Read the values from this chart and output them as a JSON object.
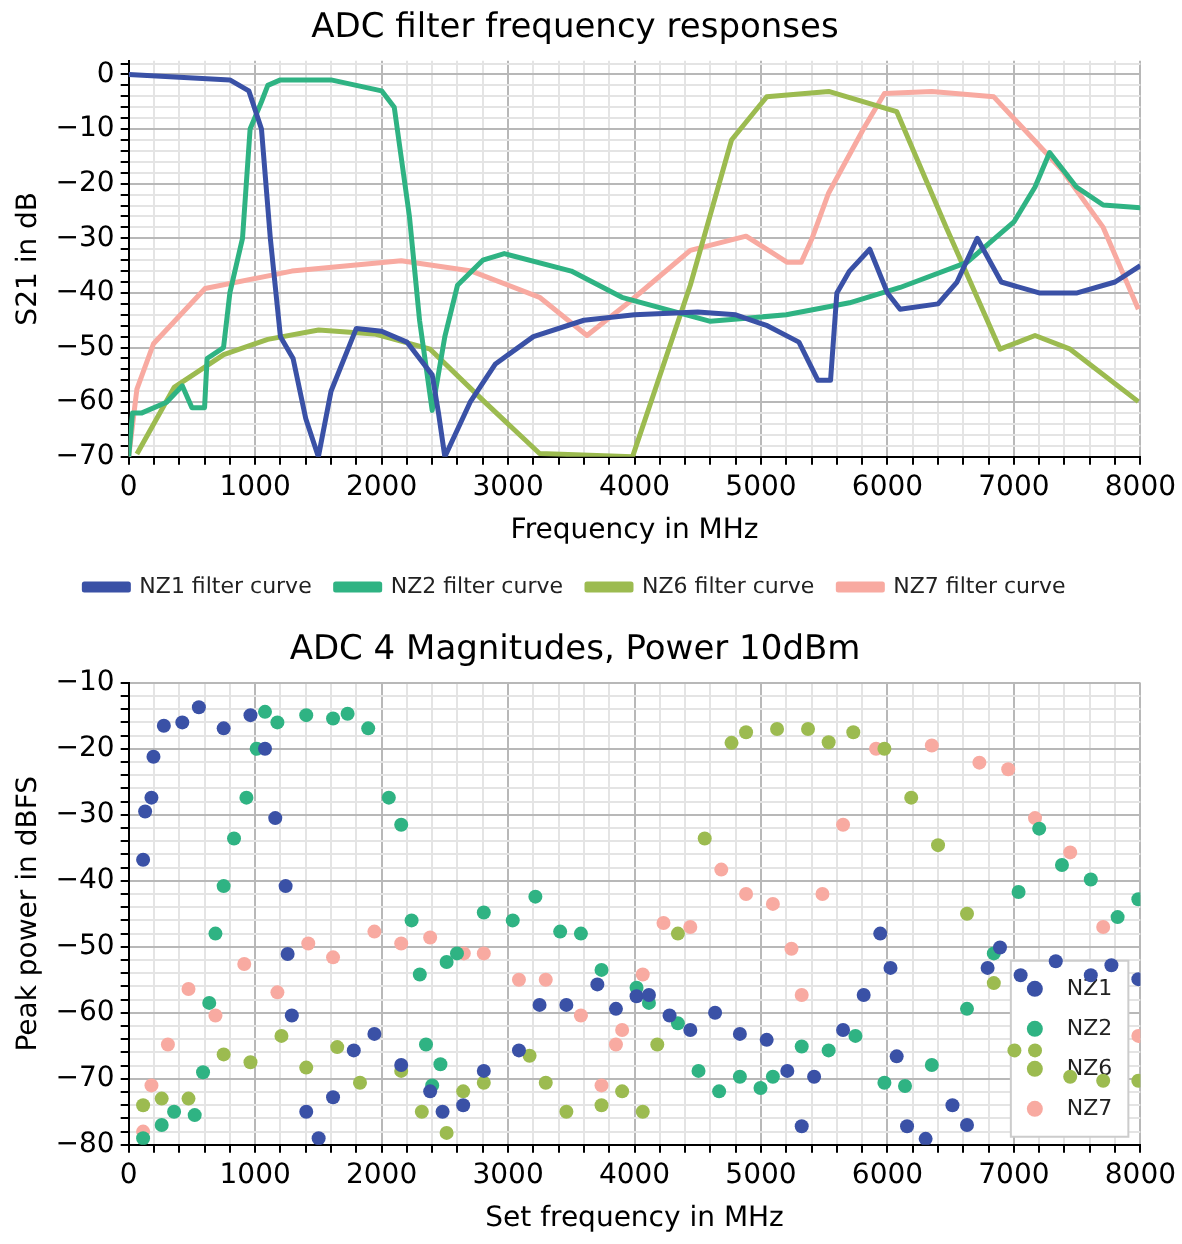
{
  "chart_data": [
    {
      "type": "line",
      "title": "ADC filter frequency responses",
      "xlabel": "Frequency in MHz",
      "ylabel": "S21 in dB",
      "legend": "bottom",
      "grid": true,
      "marker": "none",
      "line_style": "solid",
      "xlim": [
        0,
        8000
      ],
      "ylim": [
        -70,
        2.5
      ],
      "xticks": [
        0,
        {
          "value": 200,
          "label": null
        },
        {
          "value": 400,
          "label": null
        },
        {
          "value": 600,
          "label": null
        },
        {
          "value": 800,
          "label": null
        },
        1000,
        {
          "value": 1200,
          "label": null
        },
        {
          "value": 1400,
          "label": null
        },
        {
          "value": 1600,
          "label": null
        },
        {
          "value": 1800,
          "label": null
        },
        2000,
        {
          "value": 2200,
          "label": null
        },
        {
          "value": 2400,
          "label": null
        },
        {
          "value": 2600,
          "label": null
        },
        {
          "value": 2800,
          "label": null
        },
        3000,
        {
          "value": 3200,
          "label": null
        },
        {
          "value": 3400,
          "label": null
        },
        {
          "value": 3600,
          "label": null
        },
        {
          "value": 3800,
          "label": null
        },
        4000,
        {
          "value": 4200,
          "label": null
        },
        {
          "value": 4400,
          "label": null
        },
        {
          "value": 4600,
          "label": null
        },
        {
          "value": 4800,
          "label": null
        },
        5000,
        {
          "value": 5200,
          "label": null
        },
        {
          "value": 5400,
          "label": null
        },
        {
          "value": 5600,
          "label": null
        },
        {
          "value": 5800,
          "label": null
        },
        6000,
        {
          "value": 6200,
          "label": null
        },
        {
          "value": 6400,
          "label": null
        },
        {
          "value": 6600,
          "label": null
        },
        {
          "value": 6800,
          "label": null
        },
        7000,
        {
          "value": 7200,
          "label": null
        },
        {
          "value": 7400,
          "label": null
        },
        {
          "value": 7600,
          "label": null
        },
        {
          "value": 7800,
          "label": null
        },
        8000
      ],
      "yticks": [
        {
          "value": 2,
          "label": null
        },
        0,
        {
          "value": -2,
          "label": null
        },
        {
          "value": -4,
          "label": null
        },
        {
          "value": -6,
          "label": null
        },
        {
          "value": -8,
          "label": null
        },
        {
          "value": -10,
          "label": "−10"
        },
        {
          "value": -12,
          "label": null
        },
        {
          "value": -14,
          "label": null
        },
        {
          "value": -16,
          "label": null
        },
        {
          "value": -18,
          "label": null
        },
        {
          "value": -20,
          "label": "−20"
        },
        {
          "value": -22,
          "label": null
        },
        {
          "value": -24,
          "label": null
        },
        {
          "value": -26,
          "label": null
        },
        {
          "value": -28,
          "label": null
        },
        {
          "value": -30,
          "label": "−30"
        },
        {
          "value": -32,
          "label": null
        },
        {
          "value": -34,
          "label": null
        },
        {
          "value": -36,
          "label": null
        },
        {
          "value": -38,
          "label": null
        },
        {
          "value": -40,
          "label": "−40"
        },
        {
          "value": -42,
          "label": null
        },
        {
          "value": -44,
          "label": null
        },
        {
          "value": -46,
          "label": null
        },
        {
          "value": -48,
          "label": null
        },
        {
          "value": -50,
          "label": "−50"
        },
        {
          "value": -52,
          "label": null
        },
        {
          "value": -54,
          "label": null
        },
        {
          "value": -56,
          "label": null
        },
        {
          "value": -58,
          "label": null
        },
        {
          "value": -60,
          "label": "−60"
        },
        {
          "value": -62,
          "label": null
        },
        {
          "value": -64,
          "label": null
        },
        {
          "value": -66,
          "label": null
        },
        {
          "value": -68,
          "label": null
        },
        {
          "value": -70,
          "label": "−70"
        }
      ],
      "series": [
        {
          "name": "NZ1 filter curve",
          "color": "#3a51a6",
          "x": [
            0,
            400,
            800,
            950,
            1050,
            1120,
            1200,
            1300,
            1400,
            1500,
            1600,
            1800,
            2000,
            2200,
            2300,
            2400,
            2450,
            2500,
            2700,
            2900,
            3200,
            3600,
            4000,
            4500,
            4800,
            5050,
            5300,
            5450,
            5550,
            5600,
            5700,
            5860,
            6000,
            6100,
            6400,
            6550,
            6710,
            6900,
            7200,
            7500,
            7800,
            8000
          ],
          "values": [
            0,
            -0.5,
            -1,
            -3,
            -10,
            -30,
            -48,
            -52,
            -63,
            -70,
            -58,
            -46.5,
            -47,
            -49,
            -52,
            -55,
            -62,
            -70,
            -60,
            -53,
            -48,
            -45,
            -44,
            -43.5,
            -44,
            -46,
            -49,
            -56,
            -56,
            -40,
            -36,
            -32,
            -40,
            -43,
            -42,
            -38,
            -30,
            -38,
            -40,
            -40,
            -38,
            -35
          ]
        },
        {
          "name": "NZ2 filter curve",
          "color": "#2fb383",
          "x": [
            0,
            30,
            100,
            300,
            424,
            500,
            600,
            620,
            750,
            800,
            900,
            960,
            1050,
            1100,
            1200,
            1600,
            2000,
            2100,
            2220,
            2300,
            2400,
            2500,
            2600,
            2800,
            2970,
            3500,
            3900,
            4600,
            5200,
            5700,
            6100,
            6629,
            7000,
            7167,
            7282,
            7494,
            7706,
            8000
          ],
          "values": [
            -70,
            -62,
            -62,
            -60,
            -57,
            -61,
            -61,
            -52,
            -50,
            -40,
            -30,
            -10,
            -5,
            -2,
            -1,
            -1,
            -3,
            -6,
            -26,
            -45,
            -61.5,
            -48,
            -38.6,
            -34,
            -32.8,
            -36,
            -40.8,
            -45.2,
            -44,
            -41.8,
            -39,
            -34.4,
            -27,
            -20.6,
            -14.3,
            -20.6,
            -23.9,
            -24.4
          ]
        },
        {
          "name": "NZ6 filter curve",
          "color": "#9cbb50",
          "x": [
            65,
            359,
            751,
            1100,
            1502,
            1943,
            2384,
            2812,
            3249,
            3984,
            4441,
            4767,
            5045,
            5535,
            6073,
            6465,
            6890,
            7167,
            7445,
            7984
          ],
          "values": [
            -69.5,
            -57.3,
            -51.3,
            -48.5,
            -46.8,
            -47.5,
            -50.3,
            -59.9,
            -69.4,
            -70,
            -38.6,
            -12,
            -4.1,
            -3.1,
            -6.8,
            -28,
            -50.3,
            -47.8,
            -50.3,
            -59.9
          ]
        },
        {
          "name": "NZ7 filter curve",
          "color": "#f8aaa1",
          "x": [
            0,
            65,
            196,
            604,
            1290,
            2155,
            2710,
            3249,
            3624,
            3951,
            4441,
            4882,
            5208,
            5318,
            5404,
            5535,
            5812,
            5976,
            6351,
            6841,
            7380,
            7706,
            7984
          ],
          "values": [
            -70,
            -57.6,
            -49.3,
            -39.2,
            -36,
            -34.1,
            -36,
            -40.8,
            -47.8,
            -41.8,
            -32.2,
            -29.6,
            -34.4,
            -34.4,
            -30,
            -21.7,
            -9.9,
            -3.5,
            -3.1,
            -4.1,
            -17.5,
            -28,
            -43
          ]
        }
      ]
    },
    {
      "type": "scatter",
      "title": "ADC 4 Magnitudes, Power 10dBm",
      "xlabel": "Set frequency in MHz",
      "ylabel": "Peak power in dBFS",
      "legend": "bottom right",
      "grid": true,
      "marker": "circle",
      "xlim": [
        0,
        8000
      ],
      "ylim": [
        -80,
        -10
      ],
      "xticks": [
        0,
        {
          "value": 200,
          "label": null
        },
        {
          "value": 400,
          "label": null
        },
        {
          "value": 600,
          "label": null
        },
        {
          "value": 800,
          "label": null
        },
        1000,
        {
          "value": 1200,
          "label": null
        },
        {
          "value": 1400,
          "label": null
        },
        {
          "value": 1600,
          "label": null
        },
        {
          "value": 1800,
          "label": null
        },
        2000,
        {
          "value": 2200,
          "label": null
        },
        {
          "value": 2400,
          "label": null
        },
        {
          "value": 2600,
          "label": null
        },
        {
          "value": 2800,
          "label": null
        },
        3000,
        {
          "value": 3200,
          "label": null
        },
        {
          "value": 3400,
          "label": null
        },
        {
          "value": 3600,
          "label": null
        },
        {
          "value": 3800,
          "label": null
        },
        4000,
        {
          "value": 4200,
          "label": null
        },
        {
          "value": 4400,
          "label": null
        },
        {
          "value": 4600,
          "label": null
        },
        {
          "value": 4800,
          "label": null
        },
        5000,
        {
          "value": 5200,
          "label": null
        },
        {
          "value": 5400,
          "label": null
        },
        {
          "value": 5600,
          "label": null
        },
        {
          "value": 5800,
          "label": null
        },
        6000,
        {
          "value": 6200,
          "label": null
        },
        {
          "value": 6400,
          "label": null
        },
        {
          "value": 6600,
          "label": null
        },
        {
          "value": 6800,
          "label": null
        },
        7000,
        {
          "value": 7200,
          "label": null
        },
        {
          "value": 7400,
          "label": null
        },
        {
          "value": 7600,
          "label": null
        },
        {
          "value": 7800,
          "label": null
        },
        8000
      ],
      "yticks": [
        {
          "value": -10,
          "label": "−10"
        },
        {
          "value": -12,
          "label": null
        },
        {
          "value": -14,
          "label": null
        },
        {
          "value": -16,
          "label": null
        },
        {
          "value": -18,
          "label": null
        },
        {
          "value": -20,
          "label": "−20"
        },
        {
          "value": -22,
          "label": null
        },
        {
          "value": -24,
          "label": null
        },
        {
          "value": -26,
          "label": null
        },
        {
          "value": -28,
          "label": null
        },
        {
          "value": -30,
          "label": "−30"
        },
        {
          "value": -32,
          "label": null
        },
        {
          "value": -34,
          "label": null
        },
        {
          "value": -36,
          "label": null
        },
        {
          "value": -38,
          "label": null
        },
        {
          "value": -40,
          "label": "−40"
        },
        {
          "value": -42,
          "label": null
        },
        {
          "value": -44,
          "label": null
        },
        {
          "value": -46,
          "label": null
        },
        {
          "value": -48,
          "label": null
        },
        {
          "value": -50,
          "label": "−50"
        },
        {
          "value": -52,
          "label": null
        },
        {
          "value": -54,
          "label": null
        },
        {
          "value": -56,
          "label": null
        },
        {
          "value": -58,
          "label": null
        },
        {
          "value": -60,
          "label": "−60"
        },
        {
          "value": -62,
          "label": null
        },
        {
          "value": -64,
          "label": null
        },
        {
          "value": -66,
          "label": null
        },
        {
          "value": -68,
          "label": null
        },
        {
          "value": -70,
          "label": "−70"
        },
        {
          "value": -72,
          "label": null
        },
        {
          "value": -74,
          "label": null
        },
        {
          "value": -76,
          "label": null
        },
        {
          "value": -78,
          "label": null
        },
        {
          "value": -80,
          "label": "−80"
        }
      ],
      "series": [
        {
          "name": "NZ1",
          "color": "#3a51a6",
          "x": [
            114,
            130,
            180,
            196,
            278,
            424,
            555,
            751,
            963,
            1078,
            1159,
            1241,
            1257,
            1290,
            1404,
            1502,
            1616,
            1780,
            1943,
            2155,
            2384,
            2482,
            2645,
            2808,
            3086,
            3249,
            3461,
            3706,
            3853,
            4016,
            4114,
            4277,
            4441,
            4637,
            4833,
            5045,
            5208,
            5322,
            5420,
            5649,
            5812,
            5943,
            6024,
            6073,
            6155,
            6302,
            6514,
            6629,
            6792,
            6890,
            7053,
            7331,
            7608,
            7771,
            7984
          ],
          "values": [
            -36.8,
            -29.5,
            -27.4,
            -21.2,
            -16.5,
            -16,
            -13.7,
            -16.9,
            -14.9,
            -20,
            -30.5,
            -40.8,
            -51.1,
            -60.4,
            -75,
            -79,
            -72.8,
            -65.7,
            -63.2,
            -67.9,
            -71.9,
            -75,
            -74,
            -68.8,
            -65.7,
            -58.8,
            -58.8,
            -55.7,
            -59.4,
            -57.5,
            -57.3,
            -60.4,
            -62.6,
            -60,
            -63.2,
            -64.1,
            -68.8,
            -77.2,
            -69.7,
            -62.6,
            -57.3,
            -48,
            -53.2,
            -66.6,
            -77.2,
            -79.1,
            -74,
            -77,
            -53.2,
            -50.1,
            -54.3,
            -52.2,
            -54.3,
            -52.8,
            -54.9
          ]
        },
        {
          "name": "NZ2",
          "color": "#2fb383",
          "x": [
            114,
            261,
            359,
            522,
            588,
            637,
            686,
            751,
            833,
            931,
            1012,
            1078,
            1176,
            1404,
            1616,
            1731,
            1894,
            2057,
            2155,
            2237,
            2302,
            2351,
            2400,
            2465,
            2514,
            2596,
            2808,
            3037,
            3216,
            3412,
            3576,
            3739,
            4016,
            4114,
            4343,
            4506,
            4669,
            4833,
            4996,
            5094,
            5322,
            5535,
            5747,
            5976,
            6139,
            6351,
            6629,
            6841,
            7037,
            7200,
            7380,
            7608,
            7820,
            7984
          ],
          "values": [
            -79,
            -77,
            -75,
            -75.5,
            -69,
            -58.5,
            -48,
            -40.8,
            -33.6,
            -27.4,
            -20,
            -14.4,
            -16,
            -14.9,
            -15.4,
            -14.7,
            -16.9,
            -27.4,
            -31.5,
            -46,
            -54.2,
            -64.8,
            -71,
            -67.8,
            -52.3,
            -51,
            -44.8,
            -46,
            -42.4,
            -47.7,
            -48,
            -53.5,
            -56.2,
            -58.5,
            -61.6,
            -68.8,
            -71.9,
            -69.7,
            -71.4,
            -69.7,
            -65.1,
            -65.7,
            -63.5,
            -70.6,
            -71.1,
            -67.9,
            -59.4,
            -51,
            -41.7,
            -32.1,
            -37.6,
            -39.8,
            -45.5,
            -42.8
          ]
        },
        {
          "name": "NZ6",
          "color": "#9cbb50",
          "x": [
            114,
            261,
            473,
            751,
            963,
            1208,
            1404,
            1649,
            1829,
            2155,
            2318,
            2514,
            2645,
            2808,
            3170,
            3298,
            3461,
            3739,
            3902,
            4065,
            4180,
            4343,
            4555,
            4767,
            4882,
            5127,
            5372,
            5535,
            5730,
            5976,
            6188,
            6400,
            6629,
            6841,
            7004,
            7167,
            7445,
            7706,
            7984
          ],
          "values": [
            -74,
            -73,
            -73,
            -66.3,
            -67.5,
            -63.5,
            -68.3,
            -65.2,
            -70.6,
            -68.8,
            -75,
            -78.2,
            -71.9,
            -70.6,
            -66.5,
            -70.6,
            -75,
            -74,
            -71.9,
            -75,
            -64.8,
            -48,
            -33.6,
            -19.1,
            -17.5,
            -17,
            -17,
            -19,
            -17.5,
            -20,
            -27.4,
            -34.6,
            -45,
            -55.5,
            -65.7,
            -65.7,
            -69.7,
            -70.3,
            -70.3
          ]
        },
        {
          "name": "NZ7",
          "color": "#f8aaa1",
          "x": [
            114,
            180,
            310,
            473,
            686,
            914,
            1176,
            1420,
            1616,
            1943,
            2155,
            2384,
            2650,
            2808,
            3086,
            3298,
            3576,
            3739,
            3853,
            3902,
            4065,
            4229,
            4441,
            4686,
            4882,
            5094,
            5241,
            5322,
            5486,
            5649,
            5910,
            6351,
            6727,
            6955,
            7167,
            7445,
            7706,
            7984
          ],
          "values": [
            -78,
            -71,
            -64.8,
            -56.4,
            -60.4,
            -52.6,
            -56.9,
            -49.5,
            -51.6,
            -47.7,
            -49.5,
            -48.6,
            -51,
            -51,
            -55,
            -55,
            -60.4,
            -71,
            -64.8,
            -62.6,
            -54.2,
            -46.4,
            -47,
            -38.3,
            -42,
            -43.5,
            -50.3,
            -57.3,
            -42,
            -31.5,
            -20,
            -19.5,
            -22.1,
            -23.1,
            -30.5,
            -35.7,
            -47,
            -63.5
          ]
        }
      ]
    }
  ]
}
